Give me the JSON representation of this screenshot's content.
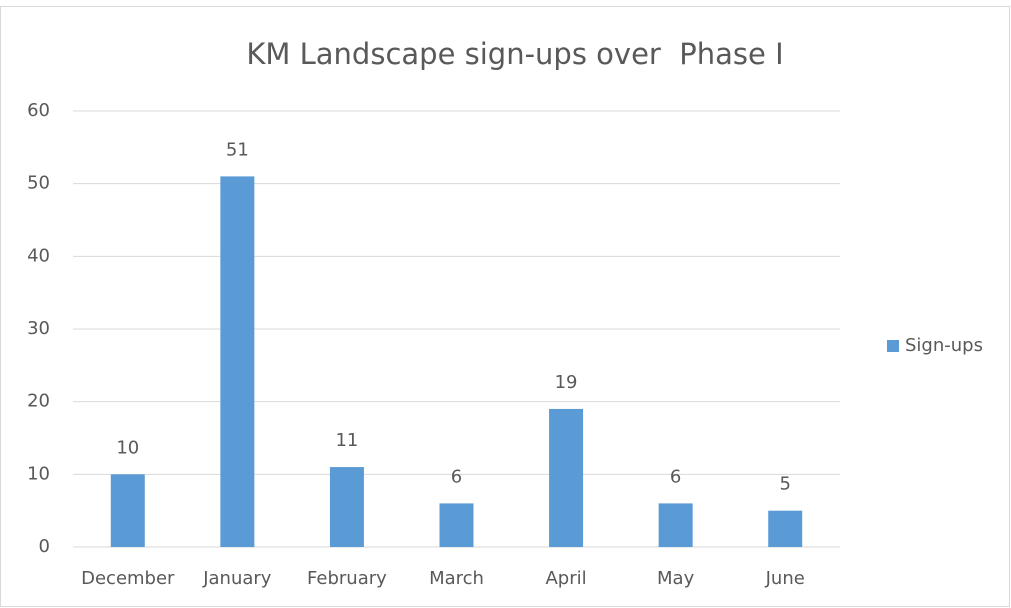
{
  "chart_data": {
    "type": "bar",
    "title": "KM Landscape sign-ups over  Phase I",
    "categories": [
      "December",
      "January",
      "February",
      "March",
      "April",
      "May",
      "June"
    ],
    "series": [
      {
        "name": "Sign-ups",
        "color": "#5b9bd5",
        "values": [
          10,
          51,
          11,
          6,
          19,
          6,
          5
        ]
      }
    ],
    "ylim": [
      0,
      60
    ],
    "yticks": [
      0,
      10,
      20,
      30,
      40,
      50,
      60
    ],
    "grid": true,
    "legend": "right",
    "data_labels": true
  }
}
